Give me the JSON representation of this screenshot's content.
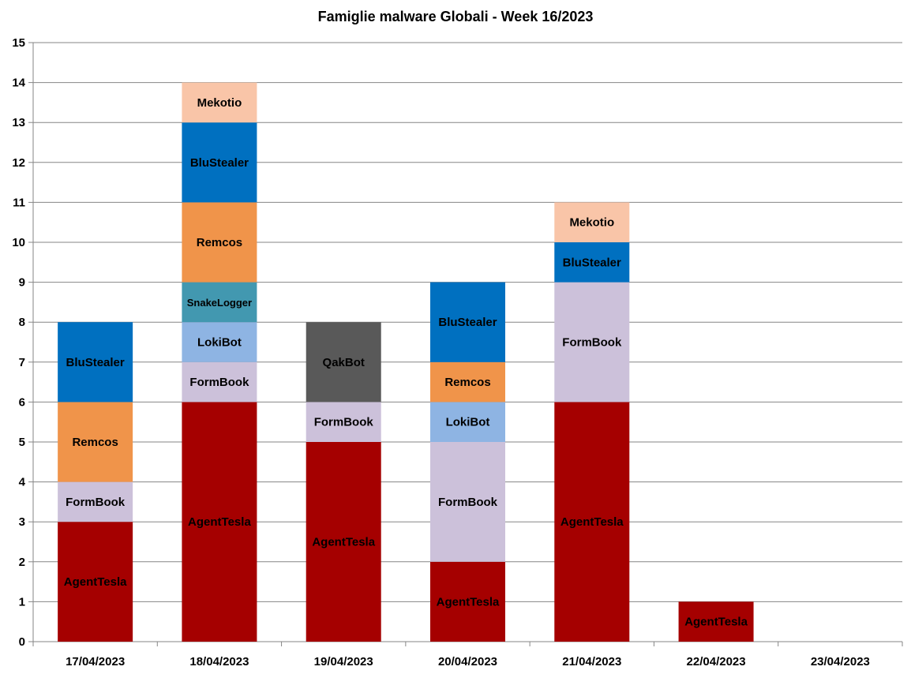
{
  "chart_data": {
    "type": "bar",
    "stacked": true,
    "title": "Famiglie malware Globali - Week 16/2023",
    "xlabel": "",
    "ylabel": "",
    "ylim": [
      0,
      15
    ],
    "yticks": [
      "0",
      "1",
      "2",
      "3",
      "4",
      "5",
      "6",
      "7",
      "8",
      "9",
      "10",
      "11",
      "12",
      "13",
      "14",
      "15"
    ],
    "grid": true,
    "legend": "none",
    "categories": [
      "17/04/2023",
      "18/04/2023",
      "19/04/2023",
      "20/04/2023",
      "21/04/2023",
      "22/04/2023",
      "23/04/2023"
    ],
    "colors": {
      "AgentTesla": "#a50000",
      "FormBook": "#ccc1da",
      "Remcos": "#f0944a",
      "BluStealer": "#0070c0",
      "LokiBot": "#8eb4e3",
      "SnakeLogger": "#4298b0",
      "Mekotio": "#f9c5a8",
      "QakBot": "#595959"
    },
    "stacks": [
      [
        {
          "name": "AgentTesla",
          "value": 3
        },
        {
          "name": "FormBook",
          "value": 1
        },
        {
          "name": "Remcos",
          "value": 2
        },
        {
          "name": "BluStealer",
          "value": 2
        }
      ],
      [
        {
          "name": "AgentTesla",
          "value": 6
        },
        {
          "name": "FormBook",
          "value": 1
        },
        {
          "name": "LokiBot",
          "value": 1
        },
        {
          "name": "SnakeLogger",
          "value": 1
        },
        {
          "name": "Remcos",
          "value": 2
        },
        {
          "name": "BluStealer",
          "value": 2
        },
        {
          "name": "Mekotio",
          "value": 1
        }
      ],
      [
        {
          "name": "AgentTesla",
          "value": 5
        },
        {
          "name": "FormBook",
          "value": 1
        },
        {
          "name": "QakBot",
          "value": 2
        }
      ],
      [
        {
          "name": "AgentTesla",
          "value": 2
        },
        {
          "name": "FormBook",
          "value": 3
        },
        {
          "name": "LokiBot",
          "value": 1
        },
        {
          "name": "Remcos",
          "value": 1
        },
        {
          "name": "BluStealer",
          "value": 2
        }
      ],
      [
        {
          "name": "AgentTesla",
          "value": 6
        },
        {
          "name": "FormBook",
          "value": 3
        },
        {
          "name": "BluStealer",
          "value": 1
        },
        {
          "name": "Mekotio",
          "value": 1
        }
      ],
      [
        {
          "name": "AgentTesla",
          "value": 1
        }
      ],
      []
    ]
  }
}
